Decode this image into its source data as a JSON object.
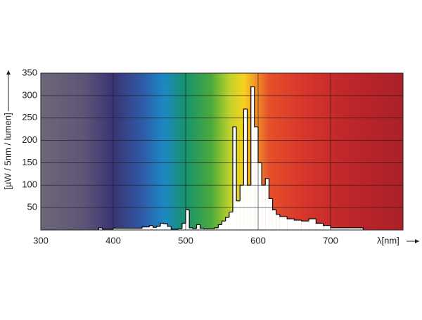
{
  "chart_data": {
    "type": "histogram",
    "ylabel": "[µW / 5nm / lumen]",
    "xlabel": "λ[nm]",
    "bins": [
      380,
      385,
      400,
      440,
      450,
      455,
      460,
      465,
      470,
      475,
      480,
      490,
      495,
      500,
      505,
      510,
      515,
      520,
      525,
      540,
      545,
      550,
      555,
      560,
      565,
      570,
      575,
      580,
      585,
      590,
      595,
      600,
      605,
      610,
      615,
      620,
      625,
      630,
      640,
      650,
      660,
      670,
      680,
      690,
      700,
      745
    ],
    "values": [
      5,
      2,
      4,
      7,
      10,
      6,
      8,
      15,
      14,
      8,
      2,
      3,
      15,
      45,
      5,
      3,
      12,
      4,
      3,
      5,
      12,
      20,
      28,
      40,
      230,
      65,
      100,
      270,
      100,
      320,
      230,
      150,
      100,
      115,
      70,
      45,
      35,
      30,
      25,
      22,
      20,
      25,
      15,
      10,
      5
    ],
    "color": "#ffffff",
    "xlim": [
      300,
      800
    ],
    "xticks": [
      300,
      400,
      500,
      600,
      700
    ],
    "ylim": [
      0,
      350
    ],
    "yticks": [
      50,
      100,
      150,
      200,
      250,
      300,
      350
    ],
    "grid": true
  }
}
